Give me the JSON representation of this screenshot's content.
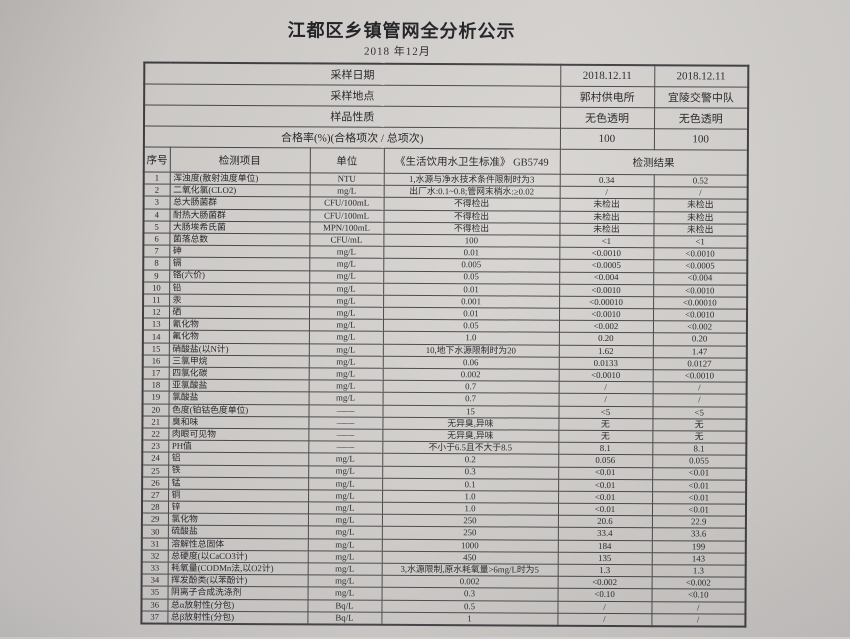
{
  "page": {
    "title": "江都区乡镇管网全分析公示",
    "subtitle": "2018 年12月"
  },
  "info_rows": [
    {
      "label": "采样日期",
      "col1": "2018.12.11",
      "col2": "2018.12.11"
    },
    {
      "label": "采样地点",
      "col1": "郭村供电所",
      "col2": "宜陵交警中队"
    },
    {
      "label": "样品性质",
      "col1": "无色透明",
      "col2": "无色透明"
    },
    {
      "label": "合格率(%)(合格项次 / 总项次)",
      "col1": "100",
      "col2": "100"
    }
  ],
  "columns": {
    "seq": "序号",
    "item": "检测项目",
    "unit": "单位",
    "standard": "《生活饮用水卫生标准》 GB5749",
    "result": "检测结果"
  },
  "rows": [
    {
      "no": "1",
      "item": "浑浊度(散射浊度单位)",
      "unit": "NTU",
      "standard": "1,水源与净水技术条件限制时为3",
      "r1": "0.34",
      "r2": "0.52"
    },
    {
      "no": "2",
      "item": "二氧化氯(CLO2)",
      "unit": "mg/L",
      "standard": "出厂水:0.1~0.8;管网末梢水:≥0.02",
      "r1": "/",
      "r2": "/"
    },
    {
      "no": "3",
      "item": "总大肠菌群",
      "unit": "CFU/100mL",
      "standard": "不得检出",
      "r1": "未检出",
      "r2": "未检出"
    },
    {
      "no": "4",
      "item": "耐热大肠菌群",
      "unit": "CFU/100mL",
      "standard": "不得检出",
      "r1": "未检出",
      "r2": "未检出"
    },
    {
      "no": "5",
      "item": "大肠埃希氏菌",
      "unit": "MPN/100mL",
      "standard": "不得检出",
      "r1": "未检出",
      "r2": "未检出"
    },
    {
      "no": "6",
      "item": "菌落总数",
      "unit": "CFU/mL",
      "standard": "100",
      "r1": "<1",
      "r2": "<1"
    },
    {
      "no": "7",
      "item": "砷",
      "unit": "mg/L",
      "standard": "0.01",
      "r1": "<0.0010",
      "r2": "<0.0010"
    },
    {
      "no": "8",
      "item": "镉",
      "unit": "mg/L",
      "standard": "0.005",
      "r1": "<0.0005",
      "r2": "<0.0005"
    },
    {
      "no": "9",
      "item": "铬(六价)",
      "unit": "mg/L",
      "standard": "0.05",
      "r1": "<0.004",
      "r2": "<0.004"
    },
    {
      "no": "10",
      "item": "铅",
      "unit": "mg/L",
      "standard": "0.01",
      "r1": "<0.0010",
      "r2": "<0.0010"
    },
    {
      "no": "11",
      "item": "汞",
      "unit": "mg/L",
      "standard": "0.001",
      "r1": "<0.00010",
      "r2": "<0.00010"
    },
    {
      "no": "12",
      "item": "硒",
      "unit": "mg/L",
      "standard": "0.01",
      "r1": "<0.0010",
      "r2": "<0.0010"
    },
    {
      "no": "13",
      "item": "氰化物",
      "unit": "mg/L",
      "standard": "0.05",
      "r1": "<0.002",
      "r2": "<0.002"
    },
    {
      "no": "14",
      "item": "氟化物",
      "unit": "mg/L",
      "standard": "1.0",
      "r1": "0.20",
      "r2": "0.20"
    },
    {
      "no": "15",
      "item": "硝酸盐(以N计)",
      "unit": "mg/L",
      "standard": "10,地下水源限制时为20",
      "r1": "1.62",
      "r2": "1.47"
    },
    {
      "no": "16",
      "item": "三氯甲烷",
      "unit": "mg/L",
      "standard": "0.06",
      "r1": "0.0133",
      "r2": "0.0127"
    },
    {
      "no": "17",
      "item": "四氯化碳",
      "unit": "mg/L",
      "standard": "0.002",
      "r1": "<0.0010",
      "r2": "<0.0010"
    },
    {
      "no": "18",
      "item": "亚氯酸盐",
      "unit": "mg/L",
      "standard": "0.7",
      "r1": "/",
      "r2": "/"
    },
    {
      "no": "19",
      "item": "氯酸盐",
      "unit": "mg/L",
      "standard": "0.7",
      "r1": "/",
      "r2": "/"
    },
    {
      "no": "20",
      "item": "色度(铂钴色度单位)",
      "unit": "——",
      "standard": "15",
      "r1": "<5",
      "r2": "<5"
    },
    {
      "no": "21",
      "item": "臭和味",
      "unit": "——",
      "standard": "无异臭,异味",
      "r1": "无",
      "r2": "无"
    },
    {
      "no": "22",
      "item": "肉眼可见物",
      "unit": "——",
      "standard": "无异臭,异味",
      "r1": "无",
      "r2": "无"
    },
    {
      "no": "23",
      "item": "PH值",
      "unit": "——",
      "standard": "不小于6.5且不大于8.5",
      "r1": "8.1",
      "r2": "8.1"
    },
    {
      "no": "24",
      "item": "铝",
      "unit": "mg/L",
      "standard": "0.2",
      "r1": "0.056",
      "r2": "0.055"
    },
    {
      "no": "25",
      "item": "铁",
      "unit": "mg/L",
      "standard": "0.3",
      "r1": "<0.01",
      "r2": "<0.01"
    },
    {
      "no": "26",
      "item": "锰",
      "unit": "mg/L",
      "standard": "0.1",
      "r1": "<0.01",
      "r2": "<0.01"
    },
    {
      "no": "27",
      "item": "铜",
      "unit": "mg/L",
      "standard": "1.0",
      "r1": "<0.01",
      "r2": "<0.01"
    },
    {
      "no": "28",
      "item": "锌",
      "unit": "mg/L",
      "standard": "1.0",
      "r1": "<0.01",
      "r2": "<0.01"
    },
    {
      "no": "29",
      "item": "氯化物",
      "unit": "mg/L",
      "standard": "250",
      "r1": "20.6",
      "r2": "22.9"
    },
    {
      "no": "30",
      "item": "硫酸盐",
      "unit": "mg/L",
      "standard": "250",
      "r1": "33.4",
      "r2": "33.6"
    },
    {
      "no": "31",
      "item": "溶解性总固体",
      "unit": "mg/L",
      "standard": "1000",
      "r1": "184",
      "r2": "199"
    },
    {
      "no": "32",
      "item": "总硬度(以CaCO3计)",
      "unit": "mg/L",
      "standard": "450",
      "r1": "135",
      "r2": "143"
    },
    {
      "no": "33",
      "item": "耗氧量(CODMn法,以O2计)",
      "unit": "mg/L",
      "standard": "3,水源限制,原水耗氧量>6mg/L时为5",
      "r1": "1.3",
      "r2": "1.3"
    },
    {
      "no": "34",
      "item": "挥发酚类(以苯酚计)",
      "unit": "mg/L",
      "standard": "0.002",
      "r1": "<0.002",
      "r2": "<0.002"
    },
    {
      "no": "35",
      "item": "阴离子合成洗涤剂",
      "unit": "mg/L",
      "standard": "0.3",
      "r1": "<0.10",
      "r2": "<0.10"
    },
    {
      "no": "36",
      "item": "总α放射性(分包)",
      "unit": "Bq/L",
      "standard": "0.5",
      "r1": "/",
      "r2": "/"
    },
    {
      "no": "37",
      "item": "总β放射性(分包)",
      "unit": "Bq/L",
      "standard": "1",
      "r1": "/",
      "r2": "/"
    }
  ]
}
